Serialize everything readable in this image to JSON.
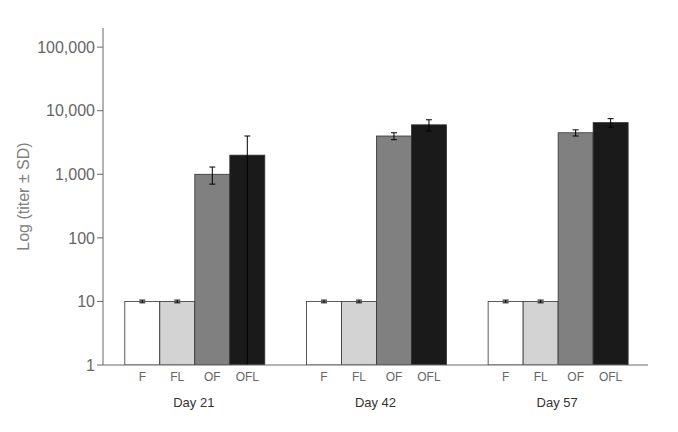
{
  "chart_data": {
    "type": "bar",
    "categories": [
      "Day 21",
      "Day 42",
      "Day 57"
    ],
    "series": [
      {
        "name": "F",
        "color": "#ffffff",
        "values": [
          10,
          10,
          10
        ],
        "errors": [
          0.5,
          0.5,
          0.5
        ]
      },
      {
        "name": "FL",
        "color": "#d3d3d3",
        "values": [
          10,
          10,
          10
        ],
        "errors": [
          0.5,
          0.5,
          0.5
        ]
      },
      {
        "name": "OF",
        "color": "#808080",
        "values": [
          1000,
          4000,
          4500
        ],
        "errors": [
          300,
          500,
          500
        ]
      },
      {
        "name": "OFL",
        "color": "#1a1a1a",
        "values": [
          2000,
          6000,
          6500
        ],
        "errors": [
          2000,
          1200,
          1000
        ]
      }
    ],
    "ylabel": "Log (titer ± SD)",
    "ylim": [
      1,
      200000
    ],
    "yticks": [
      1,
      10,
      100,
      {
        "value": 1000,
        "label": "1,000"
      },
      {
        "value": 10000,
        "label": "10,000"
      },
      {
        "value": 100000,
        "label": "100,000"
      }
    ],
    "log": "y"
  }
}
